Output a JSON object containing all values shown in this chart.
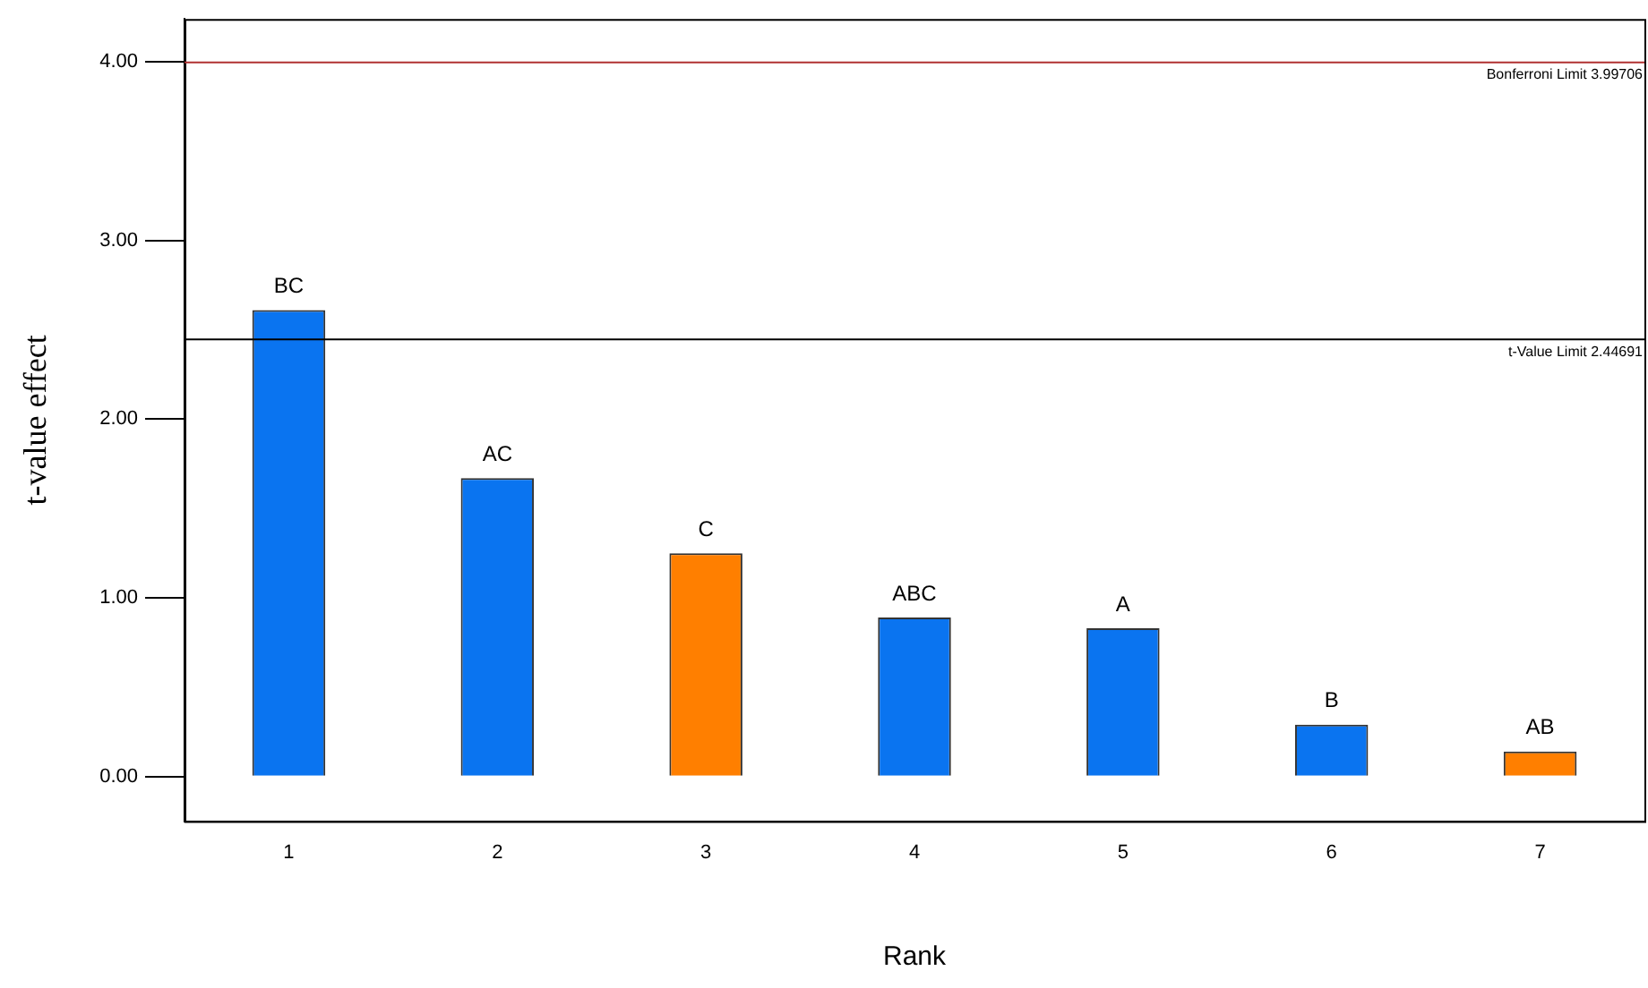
{
  "chart_data": {
    "type": "bar",
    "xlabel": "Rank",
    "ylabel": "t-value effect",
    "categories": [
      "1",
      "2",
      "3",
      "4",
      "5",
      "6",
      "7"
    ],
    "values": [
      2.61,
      1.67,
      1.25,
      0.89,
      0.83,
      0.29,
      0.14
    ],
    "colors": [
      "#0a74f0",
      "#0a74f0",
      "#ff7f00",
      "#0a74f0",
      "#0a74f0",
      "#0a74f0",
      "#ff7f00"
    ],
    "ylim": [
      -0.25,
      4.24
    ],
    "yticks": [
      {
        "value": 0,
        "label": "0.00"
      },
      {
        "value": 1,
        "label": "1.00"
      },
      {
        "value": 2,
        "label": "2.00"
      },
      {
        "value": 3,
        "label": "3.00"
      },
      {
        "value": 4,
        "label": "4.00"
      }
    ],
    "grid": false,
    "legend": false,
    "ref_lines": [
      {
        "axis": "y",
        "value": 3.99706,
        "label": "Bonferroni Limit 3.99706",
        "color": "#b03030"
      },
      {
        "axis": "y",
        "value": 2.44691,
        "label": "t-Value Limit 2.44691",
        "color": "#000000"
      }
    ],
    "annotations": [
      {
        "text": "BC",
        "x": "1",
        "y": 2.61
      },
      {
        "text": "AC",
        "x": "2",
        "y": 1.67
      },
      {
        "text": "C",
        "x": "3",
        "y": 1.25
      },
      {
        "text": "ABC",
        "x": "4",
        "y": 0.89
      },
      {
        "text": "A",
        "x": "5",
        "y": 0.83
      },
      {
        "text": "B",
        "x": "6",
        "y": 0.29
      },
      {
        "text": "AB",
        "x": "7",
        "y": 0.14
      }
    ]
  }
}
